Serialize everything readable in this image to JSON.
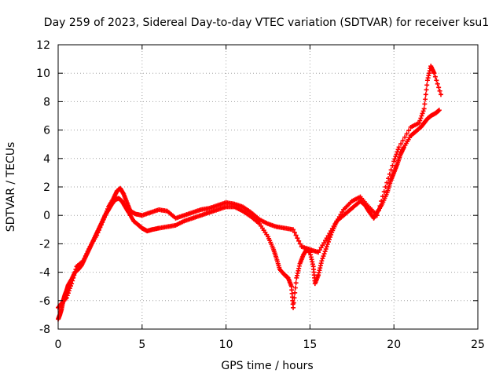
{
  "chart_data": {
    "type": "scatter",
    "title": "Day 259 of 2023, Sidereal Day-to-day VTEC variation (SDTVAR) for receiver ksu1",
    "xlabel": "GPS time / hours",
    "ylabel": "SDTVAR / TECUs",
    "xlim": [
      0,
      25
    ],
    "ylim": [
      -8,
      12
    ],
    "xticks": [
      0,
      5,
      10,
      15,
      20,
      25
    ],
    "yticks": [
      -8,
      -6,
      -4,
      -2,
      0,
      2,
      4,
      6,
      8,
      10,
      12
    ],
    "grid": true,
    "marker": "+",
    "series": [
      {
        "name": "main-track",
        "color": "#ff0000",
        "points": [
          [
            0.0,
            -7.3
          ],
          [
            0.1,
            -7.0
          ],
          [
            0.2,
            -6.6
          ],
          [
            0.3,
            -6.0
          ],
          [
            0.4,
            -5.6
          ],
          [
            0.5,
            -5.3
          ],
          [
            0.6,
            -4.9
          ],
          [
            0.8,
            -4.5
          ],
          [
            1.0,
            -4.0
          ],
          [
            1.2,
            -3.8
          ],
          [
            1.4,
            -3.5
          ],
          [
            1.6,
            -3.0
          ],
          [
            1.8,
            -2.5
          ],
          [
            2.0,
            -2.0
          ],
          [
            2.2,
            -1.5
          ],
          [
            2.4,
            -1.0
          ],
          [
            2.6,
            -0.5
          ],
          [
            2.8,
            0.0
          ],
          [
            3.0,
            0.4
          ],
          [
            3.2,
            0.8
          ],
          [
            3.4,
            1.1
          ],
          [
            3.6,
            1.2
          ],
          [
            3.8,
            1.0
          ],
          [
            4.0,
            0.6
          ],
          [
            4.2,
            0.2
          ],
          [
            4.5,
            -0.4
          ],
          [
            4.8,
            -0.7
          ],
          [
            5.0,
            -0.9
          ],
          [
            5.3,
            -1.1
          ],
          [
            5.6,
            -1.0
          ],
          [
            6.0,
            -0.9
          ],
          [
            6.5,
            -0.8
          ],
          [
            7.0,
            -0.7
          ],
          [
            7.5,
            -0.4
          ],
          [
            8.0,
            -0.2
          ],
          [
            8.5,
            0.0
          ],
          [
            9.0,
            0.2
          ],
          [
            9.5,
            0.4
          ],
          [
            10.0,
            0.6
          ],
          [
            10.5,
            0.6
          ],
          [
            11.0,
            0.3
          ],
          [
            11.5,
            -0.1
          ],
          [
            12.0,
            -0.6
          ],
          [
            12.5,
            -1.5
          ],
          [
            12.8,
            -2.3
          ],
          [
            13.0,
            -3.0
          ],
          [
            13.2,
            -3.8
          ],
          [
            13.5,
            -4.2
          ],
          [
            13.7,
            -4.4
          ],
          [
            13.9,
            -5.0
          ],
          [
            14.0,
            -6.5
          ],
          [
            14.2,
            -4.4
          ],
          [
            14.4,
            -3.4
          ],
          [
            14.6,
            -2.8
          ],
          [
            14.8,
            -2.4
          ],
          [
            15.0,
            -2.6
          ],
          [
            15.2,
            -3.6
          ],
          [
            15.3,
            -4.8
          ],
          [
            15.5,
            -4.2
          ],
          [
            15.7,
            -3.2
          ],
          [
            16.0,
            -2.2
          ],
          [
            16.3,
            -1.2
          ],
          [
            16.6,
            -0.4
          ],
          [
            17.0,
            0.0
          ],
          [
            17.3,
            0.3
          ],
          [
            17.6,
            0.6
          ],
          [
            18.0,
            1.0
          ],
          [
            18.3,
            0.7
          ],
          [
            18.5,
            0.3
          ],
          [
            18.8,
            -0.2
          ],
          [
            19.0,
            0.2
          ],
          [
            19.3,
            0.8
          ],
          [
            19.6,
            1.6
          ],
          [
            19.8,
            2.4
          ],
          [
            20.0,
            3.0
          ],
          [
            20.2,
            3.6
          ],
          [
            20.4,
            4.3
          ],
          [
            20.6,
            4.8
          ],
          [
            21.0,
            5.6
          ],
          [
            21.3,
            5.9
          ],
          [
            21.6,
            6.2
          ],
          [
            21.8,
            6.5
          ],
          [
            22.0,
            6.8
          ],
          [
            22.2,
            7.0
          ],
          [
            22.5,
            7.2
          ],
          [
            22.7,
            7.4
          ]
        ]
      },
      {
        "name": "secondary-track",
        "color": "#ff0000",
        "points": [
          [
            0.0,
            -6.5
          ],
          [
            0.2,
            -6.2
          ],
          [
            0.5,
            -5.8
          ],
          [
            0.8,
            -4.8
          ],
          [
            1.1,
            -3.6
          ],
          [
            1.5,
            -3.2
          ],
          [
            1.9,
            -2.2
          ],
          [
            2.3,
            -1.4
          ],
          [
            2.7,
            -0.3
          ],
          [
            3.0,
            0.6
          ],
          [
            3.3,
            1.2
          ],
          [
            3.5,
            1.7
          ],
          [
            3.7,
            1.9
          ],
          [
            3.9,
            1.5
          ],
          [
            4.1,
            0.9
          ],
          [
            4.3,
            0.3
          ],
          [
            4.6,
            0.1
          ],
          [
            5.0,
            0.0
          ],
          [
            5.5,
            0.2
          ],
          [
            6.0,
            0.4
          ],
          [
            6.5,
            0.3
          ],
          [
            7.0,
            -0.2
          ],
          [
            7.5,
            0.0
          ],
          [
            8.0,
            0.2
          ],
          [
            8.5,
            0.4
          ],
          [
            9.0,
            0.5
          ],
          [
            9.5,
            0.7
          ],
          [
            10.0,
            0.9
          ],
          [
            10.5,
            0.8
          ],
          [
            11.0,
            0.6
          ],
          [
            11.5,
            0.2
          ],
          [
            12.0,
            -0.3
          ],
          [
            12.5,
            -0.6
          ],
          [
            13.0,
            -0.8
          ],
          [
            13.5,
            -0.9
          ],
          [
            14.0,
            -1.0
          ],
          [
            14.5,
            -2.2
          ],
          [
            15.0,
            -2.4
          ],
          [
            15.5,
            -2.6
          ],
          [
            16.0,
            -1.6
          ],
          [
            16.5,
            -0.6
          ],
          [
            17.0,
            0.4
          ],
          [
            17.5,
            1.0
          ],
          [
            18.0,
            1.3
          ],
          [
            18.5,
            0.6
          ],
          [
            19.0,
            0.0
          ],
          [
            19.5,
            2.0
          ],
          [
            20.0,
            3.8
          ],
          [
            20.3,
            4.8
          ],
          [
            21.0,
            6.2
          ],
          [
            21.5,
            6.5
          ],
          [
            21.8,
            7.5
          ],
          [
            22.0,
            9.5
          ],
          [
            22.2,
            10.5
          ],
          [
            22.4,
            10.0
          ],
          [
            22.8,
            8.5
          ]
        ]
      }
    ]
  }
}
